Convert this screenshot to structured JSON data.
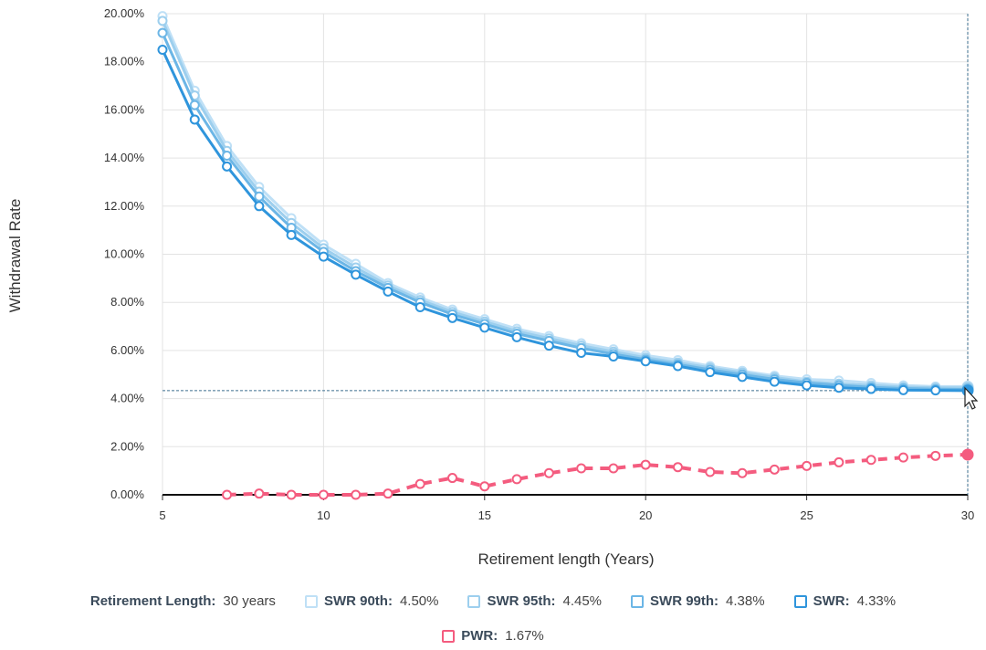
{
  "chart_data": {
    "type": "line",
    "xlabel": "Retirement length (Years)",
    "ylabel": "Withdrawal Rate",
    "xlim": [
      5,
      30
    ],
    "ylim": [
      0,
      20
    ],
    "x_ticks": [
      "5",
      "10",
      "15",
      "20",
      "25",
      "30"
    ],
    "y_ticks": [
      "0.00%",
      "2.00%",
      "4.00%",
      "6.00%",
      "8.00%",
      "10.00%",
      "12.00%",
      "14.00%",
      "16.00%",
      "18.00%",
      "20.00%"
    ],
    "grid": true,
    "hover_x": 30,
    "series": [
      {
        "name": "SWR 90th",
        "color": "#bfe0f6",
        "dashed": false,
        "x": [
          5,
          6,
          7,
          8,
          9,
          10,
          11,
          12,
          13,
          14,
          15,
          16,
          17,
          18,
          19,
          20,
          21,
          22,
          23,
          24,
          25,
          26,
          27,
          28,
          29,
          30
        ],
        "values": [
          19.9,
          16.8,
          14.5,
          12.8,
          11.5,
          10.4,
          9.6,
          8.8,
          8.2,
          7.7,
          7.3,
          6.9,
          6.6,
          6.3,
          6.05,
          5.8,
          5.6,
          5.35,
          5.15,
          4.95,
          4.8,
          4.75,
          4.65,
          4.55,
          4.5,
          4.5
        ]
      },
      {
        "name": "SWR 95th",
        "color": "#9dcfee",
        "dashed": false,
        "x": [
          5,
          6,
          7,
          8,
          9,
          10,
          11,
          12,
          13,
          14,
          15,
          16,
          17,
          18,
          19,
          20,
          21,
          22,
          23,
          24,
          25,
          26,
          27,
          28,
          29,
          30
        ],
        "values": [
          19.7,
          16.6,
          14.3,
          12.6,
          11.3,
          10.25,
          9.45,
          8.7,
          8.1,
          7.6,
          7.2,
          6.8,
          6.5,
          6.2,
          5.95,
          5.7,
          5.5,
          5.28,
          5.08,
          4.88,
          4.7,
          4.62,
          4.55,
          4.48,
          4.45,
          4.45
        ]
      },
      {
        "name": "SWR 99th",
        "color": "#6cb6e6",
        "dashed": false,
        "x": [
          5,
          6,
          7,
          8,
          9,
          10,
          11,
          12,
          13,
          14,
          15,
          16,
          17,
          18,
          19,
          20,
          21,
          22,
          23,
          24,
          25,
          26,
          27,
          28,
          29,
          30
        ],
        "values": [
          19.2,
          16.2,
          14.1,
          12.4,
          11.1,
          10.1,
          9.3,
          8.6,
          8.0,
          7.5,
          7.1,
          6.7,
          6.4,
          6.1,
          5.85,
          5.62,
          5.42,
          5.2,
          5.0,
          4.8,
          4.65,
          4.55,
          4.47,
          4.42,
          4.39,
          4.38
        ]
      },
      {
        "name": "SWR",
        "color": "#2f95dc",
        "dashed": false,
        "x": [
          5,
          6,
          7,
          8,
          9,
          10,
          11,
          12,
          13,
          14,
          15,
          16,
          17,
          18,
          19,
          20,
          21,
          22,
          23,
          24,
          25,
          26,
          27,
          28,
          29,
          30
        ],
        "values": [
          18.5,
          15.6,
          13.65,
          12.0,
          10.8,
          9.9,
          9.15,
          8.45,
          7.8,
          7.35,
          6.95,
          6.55,
          6.2,
          5.9,
          5.75,
          5.55,
          5.35,
          5.1,
          4.9,
          4.7,
          4.55,
          4.45,
          4.4,
          4.35,
          4.34,
          4.33
        ]
      },
      {
        "name": "PWR",
        "color": "#f45c7f",
        "dashed": true,
        "x": [
          7,
          8,
          9,
          10,
          11,
          12,
          13,
          14,
          15,
          16,
          17,
          18,
          19,
          20,
          21,
          22,
          23,
          24,
          25,
          26,
          27,
          28,
          29,
          30
        ],
        "values": [
          0.0,
          0.05,
          0.0,
          0.0,
          0.0,
          0.05,
          0.45,
          0.7,
          0.35,
          0.65,
          0.9,
          1.1,
          1.1,
          1.25,
          1.15,
          0.95,
          0.9,
          1.05,
          1.2,
          1.35,
          1.45,
          1.55,
          1.62,
          1.67
        ]
      }
    ]
  },
  "legend": {
    "retirement_length_label": "Retirement Length:",
    "retirement_length_value": "30 years",
    "items": [
      {
        "label": "SWR 90th:",
        "value": "4.50%",
        "color": "#bfe0f6"
      },
      {
        "label": "SWR 95th:",
        "value": "4.45%",
        "color": "#9dcfee"
      },
      {
        "label": "SWR 99th:",
        "value": "4.38%",
        "color": "#6cb6e6"
      },
      {
        "label": "SWR:",
        "value": "4.33%",
        "color": "#2f95dc"
      },
      {
        "label": "PWR:",
        "value": "1.67%",
        "color": "#f45c7f"
      }
    ]
  }
}
